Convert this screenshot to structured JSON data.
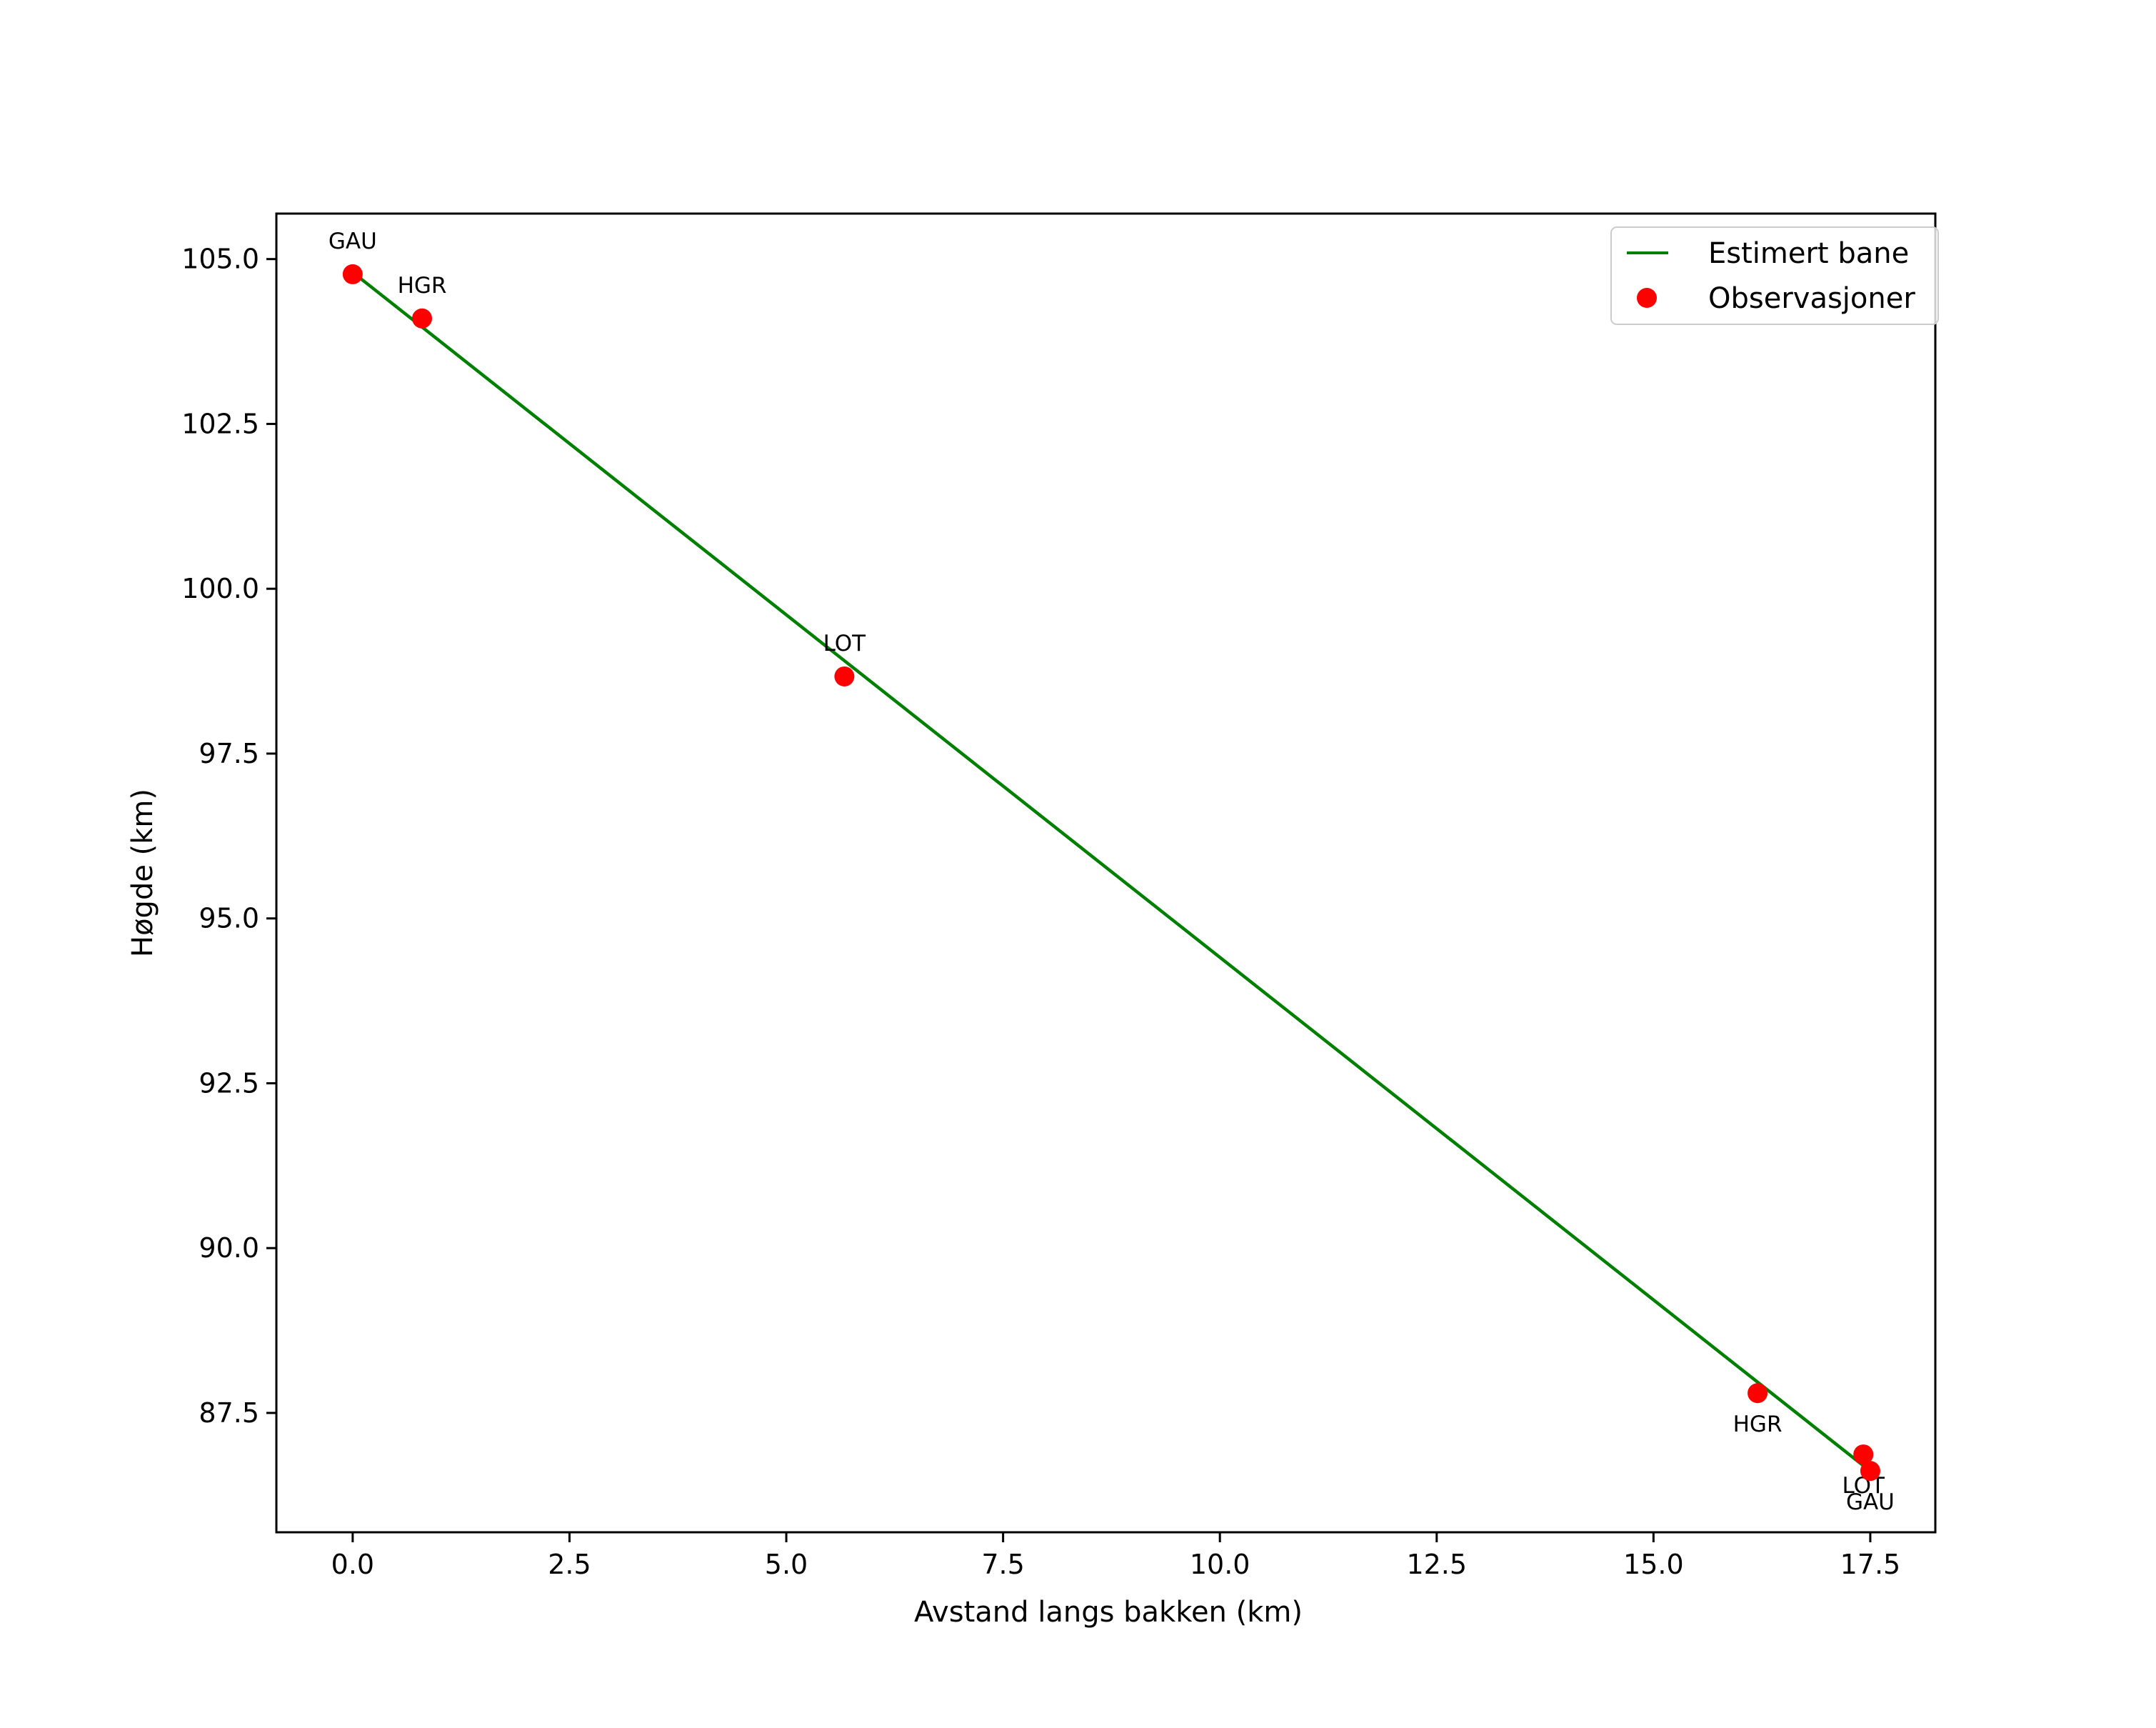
{
  "chart_data": {
    "type": "line",
    "title": "",
    "xlabel": "Avstand langs bakken (km)",
    "ylabel": "Høgde (km)",
    "xlim": [
      -0.88,
      18.25
    ],
    "ylim": [
      85.69,
      105.69
    ],
    "grid": false,
    "legend_position": "upper right",
    "x_ticks": [
      0.0,
      2.5,
      5.0,
      7.5,
      10.0,
      12.5,
      15.0,
      17.5
    ],
    "x_tick_labels": [
      "0.0",
      "2.5",
      "5.0",
      "7.5",
      "10.0",
      "12.5",
      "15.0",
      "17.5"
    ],
    "y_ticks": [
      87.5,
      90.0,
      92.5,
      95.0,
      97.5,
      100.0,
      102.5,
      105.0
    ],
    "y_tick_labels": [
      "87.5",
      "90.0",
      "92.5",
      "95.0",
      "97.5",
      "100.0",
      "102.5",
      "105.0"
    ],
    "series": [
      {
        "name": "Estimert bane",
        "kind": "line",
        "color": "#008000",
        "x": [
          0.0,
          17.42
        ],
        "y": [
          104.8,
          86.7
        ]
      },
      {
        "name": "Observasjoner",
        "kind": "scatter",
        "color": "#ff0000",
        "points": [
          {
            "label": "GAU",
            "x": 0.0,
            "y": 104.77,
            "label_pos": "above"
          },
          {
            "label": "HGR",
            "x": 0.8,
            "y": 104.1,
            "label_pos": "above"
          },
          {
            "label": "LOT",
            "x": 5.67,
            "y": 98.67,
            "label_pos": "above"
          },
          {
            "label": "HGR",
            "x": 16.2,
            "y": 87.8,
            "label_pos": "below"
          },
          {
            "label": "LOT",
            "x": 17.42,
            "y": 86.87,
            "label_pos": "below"
          },
          {
            "label": "GAU",
            "x": 17.5,
            "y": 86.62,
            "label_pos": "below"
          }
        ]
      }
    ]
  },
  "legend": {
    "items": [
      {
        "label": "Estimert bane",
        "kind": "line",
        "color": "#008000"
      },
      {
        "label": "Observasjoner",
        "kind": "marker",
        "color": "#ff0000"
      }
    ]
  }
}
